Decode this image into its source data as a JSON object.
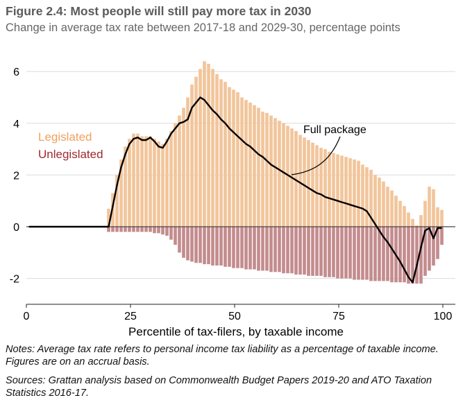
{
  "title": "Figure 2.4: Most people will still pay more tax in 2030",
  "subtitle": "Change in average tax rate between 2017-18 and 2029-30, percentage points",
  "notes": "Notes: Average tax rate refers to personal income tax liability as a percentage of taxable income. Figures are on an accrual basis.",
  "sources": "Sources: Grattan analysis based on Commonwealth Budget Papers 2019-20 and ATO Taxation Statistics 2016-17.",
  "chart_data": {
    "type": "bar",
    "xlabel": "Percentile of tax-filers, by taxable income",
    "ylabel": "",
    "xlim": [
      0,
      100
    ],
    "ylim": [
      -3,
      6.5
    ],
    "x_ticks": [
      0,
      25,
      50,
      75,
      100
    ],
    "y_ticks": [
      -2,
      0,
      2,
      4,
      6
    ],
    "grid": true,
    "legend": "left",
    "annotation": "Full package",
    "colors": {
      "Legislated": "#f2c59b",
      "Unlegislated": "#c48c8e",
      "Full package": "#000000"
    },
    "x": [
      1,
      2,
      3,
      4,
      5,
      6,
      7,
      8,
      9,
      10,
      11,
      12,
      13,
      14,
      15,
      16,
      17,
      18,
      19,
      20,
      21,
      22,
      23,
      24,
      25,
      26,
      27,
      28,
      29,
      30,
      31,
      32,
      33,
      34,
      35,
      36,
      37,
      38,
      39,
      40,
      41,
      42,
      43,
      44,
      45,
      46,
      47,
      48,
      49,
      50,
      51,
      52,
      53,
      54,
      55,
      56,
      57,
      58,
      59,
      60,
      61,
      62,
      63,
      64,
      65,
      66,
      67,
      68,
      69,
      70,
      71,
      72,
      73,
      74,
      75,
      76,
      77,
      78,
      79,
      80,
      81,
      82,
      83,
      84,
      85,
      86,
      87,
      88,
      89,
      90,
      91,
      92,
      93,
      94,
      95,
      96,
      97,
      98,
      99,
      100
    ],
    "series": [
      {
        "name": "Legislated",
        "kind": "bar",
        "values": [
          0,
          0,
          0,
          0,
          0,
          0,
          0,
          0,
          0,
          0,
          0,
          0,
          0,
          0,
          0,
          0,
          0,
          0,
          0,
          0.7,
          1.3,
          2.0,
          2.6,
          3.1,
          3.4,
          3.6,
          3.6,
          3.5,
          3.5,
          3.5,
          3.4,
          3.3,
          3.2,
          3.4,
          3.7,
          4.0,
          4.3,
          4.6,
          5.0,
          5.5,
          5.8,
          6.1,
          6.4,
          6.3,
          6.1,
          5.9,
          5.7,
          5.6,
          5.4,
          5.3,
          5.2,
          5.0,
          4.9,
          4.8,
          4.7,
          4.6,
          4.45,
          4.4,
          4.3,
          4.2,
          4.1,
          4.0,
          3.9,
          3.8,
          3.7,
          3.55,
          3.45,
          3.35,
          3.25,
          3.15,
          3.05,
          3.0,
          2.9,
          2.85,
          2.8,
          2.75,
          2.7,
          2.65,
          2.6,
          2.55,
          2.4,
          2.3,
          2.2,
          2.0,
          1.9,
          1.75,
          1.55,
          1.4,
          1.2,
          1.0,
          0.8,
          0.55,
          0.3,
          0.05,
          0.45,
          1.0,
          1.55,
          1.45,
          0.75,
          0.65
        ]
      },
      {
        "name": "Unlegislated",
        "kind": "bar",
        "values": [
          0,
          0,
          0,
          0,
          0,
          0,
          0,
          0,
          0,
          0,
          0,
          0,
          0,
          0,
          0,
          0,
          0,
          0,
          0,
          -0.2,
          -0.2,
          -0.2,
          -0.2,
          -0.2,
          -0.2,
          -0.2,
          -0.2,
          -0.2,
          -0.2,
          -0.2,
          -0.25,
          -0.25,
          -0.3,
          -0.35,
          -0.5,
          -0.7,
          -1.0,
          -1.2,
          -1.3,
          -1.35,
          -1.4,
          -1.4,
          -1.45,
          -1.45,
          -1.5,
          -1.5,
          -1.5,
          -1.55,
          -1.55,
          -1.6,
          -1.6,
          -1.6,
          -1.65,
          -1.65,
          -1.65,
          -1.7,
          -1.7,
          -1.7,
          -1.75,
          -1.75,
          -1.75,
          -1.8,
          -1.8,
          -1.8,
          -1.85,
          -1.85,
          -1.85,
          -1.9,
          -1.9,
          -1.9,
          -1.9,
          -1.95,
          -1.95,
          -1.95,
          -2.0,
          -2.0,
          -2.0,
          -2.0,
          -2.05,
          -2.05,
          -2.05,
          -2.05,
          -2.1,
          -2.1,
          -2.1,
          -2.1,
          -2.1,
          -2.15,
          -2.15,
          -2.15,
          -2.15,
          -2.2,
          -2.2,
          -2.2,
          -2.2,
          -1.9,
          -1.7,
          -1.5,
          -1.25,
          -0.7
        ]
      },
      {
        "name": "Full package",
        "kind": "line",
        "values": [
          0,
          0,
          0,
          0,
          0,
          0,
          0,
          0,
          0,
          0,
          0,
          0,
          0,
          0,
          0,
          0,
          0,
          0,
          0,
          0,
          0.8,
          1.6,
          2.3,
          2.8,
          3.2,
          3.4,
          3.45,
          3.35,
          3.35,
          3.45,
          3.3,
          3.1,
          3.05,
          3.3,
          3.6,
          3.8,
          4.0,
          4.05,
          4.15,
          4.6,
          4.8,
          5.0,
          4.9,
          4.7,
          4.5,
          4.35,
          4.15,
          4.0,
          3.8,
          3.65,
          3.5,
          3.35,
          3.2,
          3.1,
          2.95,
          2.8,
          2.7,
          2.55,
          2.4,
          2.3,
          2.2,
          2.1,
          2.0,
          1.9,
          1.8,
          1.7,
          1.6,
          1.5,
          1.4,
          1.3,
          1.25,
          1.15,
          1.1,
          1.05,
          1.0,
          0.95,
          0.9,
          0.85,
          0.8,
          0.75,
          0.7,
          0.6,
          0.35,
          0.1,
          -0.15,
          -0.4,
          -0.6,
          -0.85,
          -1.1,
          -1.35,
          -1.65,
          -1.95,
          -2.15,
          -1.5,
          -0.8,
          -0.15,
          -0.05,
          -0.45,
          -0.05,
          -0.05
        ]
      }
    ]
  }
}
